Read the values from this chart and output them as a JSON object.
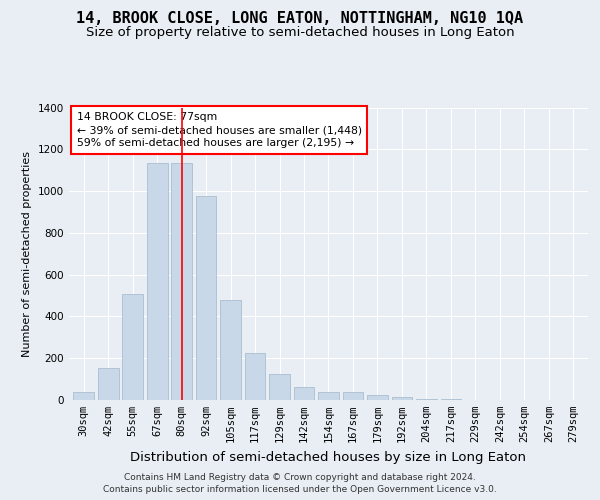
{
  "title": "14, BROOK CLOSE, LONG EATON, NOTTINGHAM, NG10 1QA",
  "subtitle": "Size of property relative to semi-detached houses in Long Eaton",
  "xlabel": "Distribution of semi-detached houses by size in Long Eaton",
  "ylabel": "Number of semi-detached properties",
  "footer_line1": "Contains HM Land Registry data © Crown copyright and database right 2024.",
  "footer_line2": "Contains public sector information licensed under the Open Government Licence v3.0.",
  "categories": [
    "30sqm",
    "42sqm",
    "55sqm",
    "67sqm",
    "80sqm",
    "92sqm",
    "105sqm",
    "117sqm",
    "129sqm",
    "142sqm",
    "154sqm",
    "167sqm",
    "179sqm",
    "192sqm",
    "204sqm",
    "217sqm",
    "229sqm",
    "242sqm",
    "254sqm",
    "267sqm",
    "279sqm"
  ],
  "values": [
    38,
    155,
    505,
    1135,
    1135,
    975,
    480,
    225,
    125,
    60,
    40,
    40,
    22,
    12,
    7,
    7,
    0,
    0,
    0,
    0,
    0
  ],
  "bar_color": "#c8d8e8",
  "bar_edge_color": "#a0b8cc",
  "red_line_index": 4,
  "annotation_line1": "14 BROOK CLOSE: 77sqm",
  "annotation_line2": "← 39% of semi-detached houses are smaller (1,448)",
  "annotation_line3": "59% of semi-detached houses are larger (2,195) →",
  "ylim": [
    0,
    1400
  ],
  "yticks": [
    0,
    200,
    400,
    600,
    800,
    1000,
    1200,
    1400
  ],
  "background_color": "#e8eef4",
  "grid_color": "#ffffff",
  "title_fontsize": 11,
  "subtitle_fontsize": 9.5,
  "tick_fontsize": 7.5,
  "ylabel_fontsize": 8,
  "xlabel_fontsize": 9.5,
  "footer_fontsize": 6.5
}
